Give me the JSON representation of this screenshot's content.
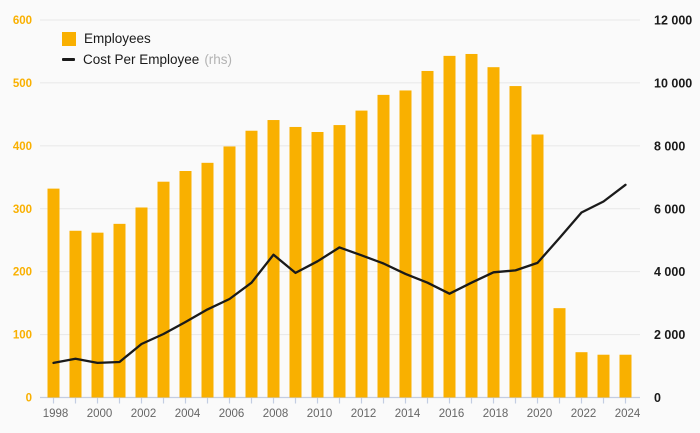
{
  "legend": {
    "employees_label": "Employees",
    "cost_label": "Cost Per Employee",
    "cost_suffix": "(rhs)"
  },
  "colors": {
    "bar": "#F9B000",
    "line": "#1A1A1A",
    "background": "#FAFAFA",
    "gridline": "#E8E8E8",
    "axis": "#C3CDE2",
    "left_axis_label": "#F9B000",
    "right_axis_label": "#1A1A1A",
    "x_label": "#666666",
    "rhs_suffix": "#B3B3B3"
  },
  "chart_data": {
    "type": "bar",
    "title": "",
    "x": [
      1998,
      1999,
      2000,
      2001,
      2002,
      2003,
      2004,
      2005,
      2006,
      2007,
      2008,
      2009,
      2010,
      2011,
      2012,
      2013,
      2014,
      2015,
      2016,
      2017,
      2018,
      2019,
      2020,
      2021,
      2022,
      2023,
      2024
    ],
    "series": [
      {
        "name": "Employees",
        "type": "bar",
        "axis": "left",
        "color": "#F9B000",
        "values": [
          332,
          265,
          262,
          276,
          302,
          343,
          360,
          373,
          399,
          424,
          441,
          430,
          422,
          433,
          456,
          481,
          488,
          519,
          543,
          546,
          525,
          495,
          418,
          142,
          72,
          68,
          68
        ]
      },
      {
        "name": "Cost Per Employee (rhs)",
        "type": "line",
        "axis": "right",
        "color": "#1A1A1A",
        "values": [
          1100,
          1230,
          1100,
          1130,
          1700,
          2020,
          2400,
          2800,
          3130,
          3650,
          4540,
          3960,
          4330,
          4770,
          4520,
          4260,
          3930,
          3650,
          3300,
          3650,
          3980,
          4040,
          4280,
          5070,
          5880,
          6230,
          6760
        ]
      }
    ],
    "left_axis": {
      "min": 0,
      "max": 600,
      "tick_interval": 100,
      "tick_labels": [
        "0",
        "100",
        "200",
        "300",
        "400",
        "500",
        "600"
      ]
    },
    "right_axis": {
      "min": 0,
      "max": 12000,
      "tick_interval": 2000,
      "tick_labels": [
        "0",
        "2 000",
        "4 000",
        "6 000",
        "8 000",
        "10 000",
        "12 000"
      ]
    },
    "x_tick_labels": [
      "1998",
      "2000",
      "2002",
      "2004",
      "2006",
      "2008",
      "2010",
      "2012",
      "2014",
      "2016",
      "2018",
      "2020",
      "2022",
      "2024"
    ],
    "x_label_every": 2,
    "grid": true,
    "legend_position": "top-left"
  }
}
